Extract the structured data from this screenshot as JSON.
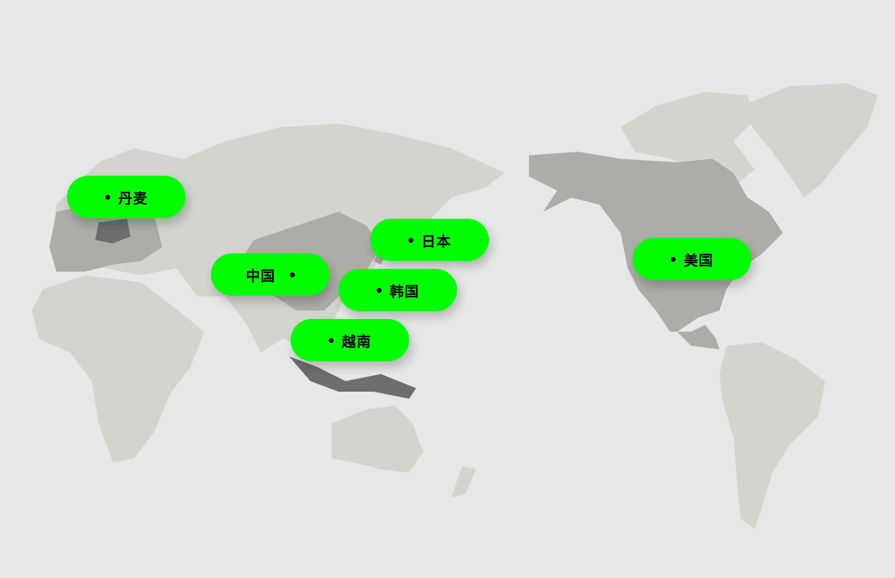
{
  "colors": {
    "background": "#e6e8e7",
    "land_light": "#d4d4cf",
    "land_mid": "#adada8",
    "land_dark": "#6e6e6e",
    "marker": "#00ff00"
  },
  "markers": [
    {
      "label": "丹麦",
      "dot_position": "before"
    },
    {
      "label": "日本",
      "dot_position": "before"
    },
    {
      "label": "中国",
      "dot_position": "after"
    },
    {
      "label": "韩国",
      "dot_position": "before"
    },
    {
      "label": "越南",
      "dot_position": "before"
    },
    {
      "label": "美国",
      "dot_position": "before"
    }
  ]
}
